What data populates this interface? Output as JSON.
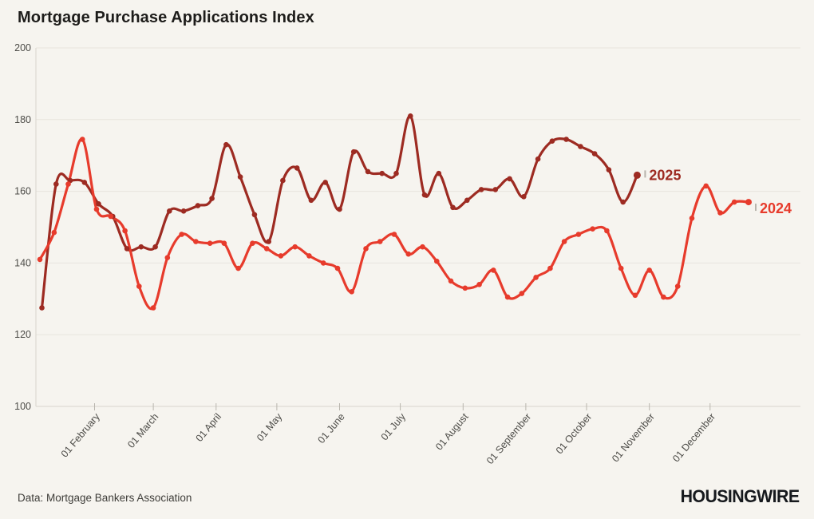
{
  "title": "Mortgage Purchase Applications Index",
  "footer": {
    "source": "Data: Mortgage Bankers Association",
    "logo": "HOUSINGWIRE"
  },
  "chart_data": {
    "type": "line",
    "title": "Mortgage Purchase Applications Index",
    "xlabel": "",
    "ylabel": "",
    "ylim": [
      100,
      200
    ],
    "y_ticks": [
      100,
      120,
      140,
      160,
      180,
      200
    ],
    "x_tick_labels": [
      "01 February",
      "01 March",
      "01 April",
      "01 May",
      "01 June",
      "01 July",
      "01 August",
      "01 September",
      "01 October",
      "01 November",
      "01 December"
    ],
    "grid": "horizontal",
    "legend_position": "end-of-line",
    "frequency": "weekly",
    "colors": {
      "background": "#f6f4ef",
      "gridline": "#e8e5de",
      "axis_line": "#d8d5ce",
      "tick_mark": "#b9b6ae",
      "axis_text": "#4c4b47",
      "label_leader": "#b7b4ac",
      "series_2025": "#9d2b22",
      "series_2024": "#e73b2c"
    },
    "series": [
      {
        "name": "2025",
        "color": "#9d2b22",
        "values": [
          127.5,
          162,
          163,
          162.5,
          156.5,
          153,
          144,
          144.5,
          144.5,
          154.5,
          154.5,
          156,
          158,
          173,
          164,
          153.5,
          146,
          163,
          166.5,
          157.5,
          162.5,
          155,
          171,
          165.5,
          165,
          165,
          181,
          159,
          165,
          155.5,
          157.5,
          160.5,
          160.5,
          163.5,
          158.5,
          169,
          174,
          174.5,
          172.5,
          170.5,
          166,
          157,
          164.5
        ]
      },
      {
        "name": "2024",
        "color": "#e73b2c",
        "values": [
          141,
          148.5,
          162,
          174.5,
          155,
          153,
          149,
          133.5,
          127.5,
          141.5,
          148,
          146,
          145.5,
          145.5,
          138.5,
          145.5,
          144,
          142,
          144.5,
          142,
          140,
          138.5,
          132,
          144,
          146,
          148,
          142.5,
          144.5,
          140.5,
          135,
          133,
          134,
          138,
          130.5,
          131.5,
          136,
          138.5,
          146,
          148,
          149.5,
          149,
          138.5,
          131,
          138,
          130.5,
          133.5,
          152.5,
          161.5,
          154,
          157,
          157
        ]
      }
    ]
  }
}
